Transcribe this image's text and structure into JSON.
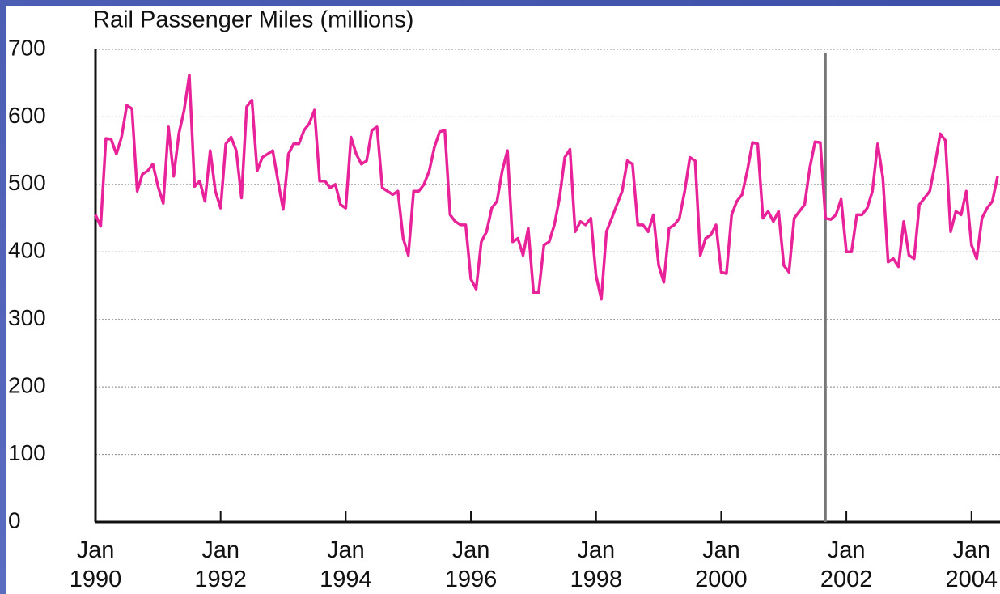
{
  "chart_data": {
    "type": "line",
    "title": "Rail Passenger Miles (millions)",
    "x": [
      "1990-01",
      "1990-02",
      "1990-03",
      "1990-04",
      "1990-05",
      "1990-06",
      "1990-07",
      "1990-08",
      "1990-09",
      "1990-10",
      "1990-11",
      "1990-12",
      "1991-01",
      "1991-02",
      "1991-03",
      "1991-04",
      "1991-05",
      "1991-06",
      "1991-07",
      "1991-08",
      "1991-09",
      "1991-10",
      "1991-11",
      "1991-12",
      "1992-01",
      "1992-02",
      "1992-03",
      "1992-04",
      "1992-05",
      "1992-06",
      "1992-07",
      "1992-08",
      "1992-09",
      "1992-10",
      "1992-11",
      "1992-12",
      "1993-01",
      "1993-02",
      "1993-03",
      "1993-04",
      "1993-05",
      "1993-06",
      "1993-07",
      "1993-08",
      "1993-09",
      "1993-10",
      "1993-11",
      "1993-12",
      "1994-01",
      "1994-02",
      "1994-03",
      "1994-04",
      "1994-05",
      "1994-06",
      "1994-07",
      "1994-08",
      "1994-09",
      "1994-10",
      "1994-11",
      "1994-12",
      "1995-01",
      "1995-02",
      "1995-03",
      "1995-04",
      "1995-05",
      "1995-06",
      "1995-07",
      "1995-08",
      "1995-09",
      "1995-10",
      "1995-11",
      "1995-12",
      "1996-01",
      "1996-02",
      "1996-03",
      "1996-04",
      "1996-05",
      "1996-06",
      "1996-07",
      "1996-08",
      "1996-09",
      "1996-10",
      "1996-11",
      "1996-12",
      "1997-01",
      "1997-02",
      "1997-03",
      "1997-04",
      "1997-05",
      "1997-06",
      "1997-07",
      "1997-08",
      "1997-09",
      "1997-10",
      "1997-11",
      "1997-12",
      "1998-01",
      "1998-02",
      "1998-03",
      "1998-04",
      "1998-05",
      "1998-06",
      "1998-07",
      "1998-08",
      "1998-09",
      "1998-10",
      "1998-11",
      "1998-12",
      "1999-01",
      "1999-02",
      "1999-03",
      "1999-04",
      "1999-05",
      "1999-06",
      "1999-07",
      "1999-08",
      "1999-09",
      "1999-10",
      "1999-11",
      "1999-12",
      "2000-01",
      "2000-02",
      "2000-03",
      "2000-04",
      "2000-05",
      "2000-06",
      "2000-07",
      "2000-08",
      "2000-09",
      "2000-10",
      "2000-11",
      "2000-12",
      "2001-01",
      "2001-02",
      "2001-03",
      "2001-04",
      "2001-05",
      "2001-06",
      "2001-07",
      "2001-08",
      "2001-09",
      "2001-10",
      "2001-11",
      "2001-12",
      "2002-01",
      "2002-02",
      "2002-03",
      "2002-04",
      "2002-05",
      "2002-06",
      "2002-07",
      "2002-08",
      "2002-09",
      "2002-10",
      "2002-11",
      "2002-12",
      "2003-01",
      "2003-02",
      "2003-03",
      "2003-04",
      "2003-05",
      "2003-06",
      "2003-07",
      "2003-08",
      "2003-09",
      "2003-10",
      "2003-11",
      "2003-12",
      "2004-01",
      "2004-02",
      "2004-03",
      "2004-04",
      "2004-05",
      "2004-06"
    ],
    "values": [
      455,
      438,
      568,
      567,
      545,
      570,
      617,
      612,
      490,
      515,
      520,
      530,
      497,
      472,
      585,
      512,
      575,
      610,
      662,
      497,
      505,
      475,
      550,
      490,
      465,
      560,
      570,
      550,
      480,
      615,
      625,
      520,
      540,
      545,
      550,
      505,
      463,
      545,
      560,
      560,
      580,
      590,
      610,
      505,
      505,
      495,
      500,
      470,
      465,
      570,
      545,
      530,
      535,
      580,
      585,
      495,
      490,
      485,
      490,
      420,
      395,
      490,
      490,
      500,
      520,
      555,
      578,
      580,
      455,
      445,
      440,
      440,
      360,
      345,
      415,
      430,
      465,
      475,
      520,
      550,
      415,
      420,
      395,
      435,
      340,
      340,
      410,
      415,
      440,
      480,
      540,
      552,
      430,
      445,
      440,
      450,
      365,
      330,
      430,
      450,
      470,
      490,
      535,
      530,
      440,
      440,
      430,
      455,
      380,
      355,
      435,
      440,
      450,
      490,
      540,
      535,
      395,
      420,
      425,
      440,
      370,
      368,
      455,
      475,
      485,
      520,
      562,
      560,
      450,
      460,
      445,
      460,
      380,
      370,
      450,
      460,
      470,
      525,
      563,
      562,
      450,
      448,
      455,
      478,
      400,
      400,
      455,
      455,
      465,
      490,
      560,
      510,
      385,
      390,
      378,
      445,
      395,
      390,
      470,
      480,
      490,
      530,
      575,
      565,
      430,
      460,
      455,
      490,
      410,
      390,
      450,
      465,
      475,
      512
    ],
    "color": "#e8239a",
    "xlim": [
      "1990-01",
      "2004-06"
    ],
    "xticks": [
      {
        "value": "1990-01",
        "label": "Jan\n1990"
      },
      {
        "value": "1992-01",
        "label": "Jan\n1992"
      },
      {
        "value": "1994-01",
        "label": "Jan\n1994"
      },
      {
        "value": "1996-01",
        "label": "Jan\n1996"
      },
      {
        "value": "1998-01",
        "label": "Jan\n1998"
      },
      {
        "value": "2000-01",
        "label": "Jan\n2000"
      },
      {
        "value": "2002-01",
        "label": "Jan\n2002"
      },
      {
        "value": "2004-01",
        "label": "Jan\n2004"
      }
    ],
    "ylim": [
      0,
      700
    ],
    "yticks": [
      0,
      100,
      200,
      300,
      400,
      500,
      600,
      700
    ],
    "grid": true,
    "vline": "2001-09"
  }
}
